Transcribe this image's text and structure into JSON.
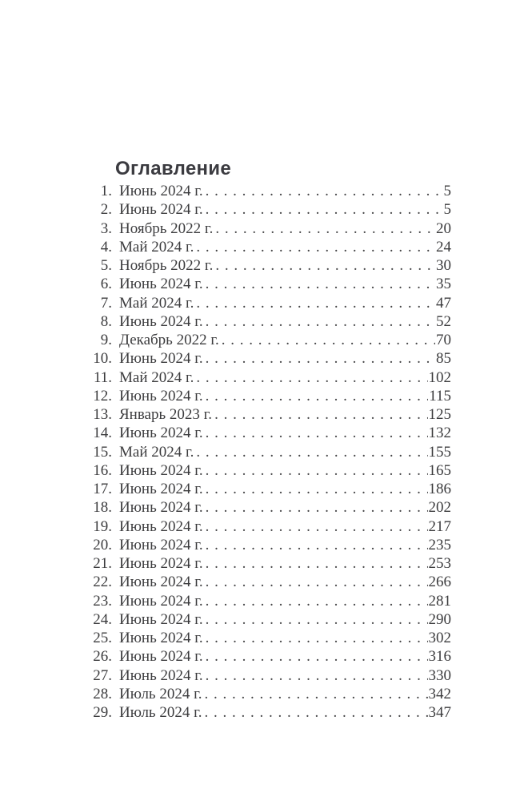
{
  "toc": {
    "title": "Оглавление",
    "entries": [
      {
        "num": "1.",
        "label": "Июнь 2024 г.",
        "page": "5"
      },
      {
        "num": "2.",
        "label": "Июнь 2024 г.",
        "page": "5"
      },
      {
        "num": "3.",
        "label": "Ноябрь 2022 г.",
        "page": "20"
      },
      {
        "num": "4.",
        "label": "Май 2024 г.",
        "page": "24"
      },
      {
        "num": "5.",
        "label": "Ноябрь 2022 г.",
        "page": "30"
      },
      {
        "num": "6.",
        "label": "Июнь 2024 г.",
        "page": "35"
      },
      {
        "num": "7.",
        "label": "Май 2024 г.",
        "page": "47"
      },
      {
        "num": "8.",
        "label": "Июнь 2024 г.",
        "page": "52"
      },
      {
        "num": "9.",
        "label": "Декабрь 2022 г.",
        "page": "70"
      },
      {
        "num": "10.",
        "label": "Июнь 2024 г.",
        "page": "85"
      },
      {
        "num": "11.",
        "label": "Май 2024 г.",
        "page": "102"
      },
      {
        "num": "12.",
        "label": "Июнь 2024 г.",
        "page": "115"
      },
      {
        "num": "13.",
        "label": "Январь 2023 г.",
        "page": "125"
      },
      {
        "num": "14.",
        "label": "Июнь 2024 г.",
        "page": "132"
      },
      {
        "num": "15.",
        "label": "Май 2024 г.",
        "page": "155"
      },
      {
        "num": "16.",
        "label": "Июнь 2024 г.",
        "page": "165"
      },
      {
        "num": "17.",
        "label": "Июнь 2024 г.",
        "page": "186"
      },
      {
        "num": "18.",
        "label": "Июнь 2024 г.",
        "page": "202"
      },
      {
        "num": "19.",
        "label": "Июнь 2024 г.",
        "page": "217"
      },
      {
        "num": "20.",
        "label": "Июнь 2024 г.",
        "page": "235"
      },
      {
        "num": "21.",
        "label": "Июнь 2024 г.",
        "page": "253"
      },
      {
        "num": "22.",
        "label": "Июнь 2024 г.",
        "page": "266"
      },
      {
        "num": "23.",
        "label": "Июнь 2024 г.",
        "page": "281"
      },
      {
        "num": "24.",
        "label": "Июнь 2024 г.",
        "page": "290"
      },
      {
        "num": "25.",
        "label": "Июнь 2024 г.",
        "page": "302"
      },
      {
        "num": "26.",
        "label": "Июнь 2024 г.",
        "page": "316"
      },
      {
        "num": "27.",
        "label": "Июнь 2024 г.",
        "page": "330"
      },
      {
        "num": "28.",
        "label": "Июль 2024 г.",
        "page": "342"
      },
      {
        "num": "29.",
        "label": "Июль 2024 г.",
        "page": "347"
      }
    ],
    "text_color": "#3c3c3e",
    "title_color": "#3b3b40",
    "background_color": "#ffffff"
  }
}
